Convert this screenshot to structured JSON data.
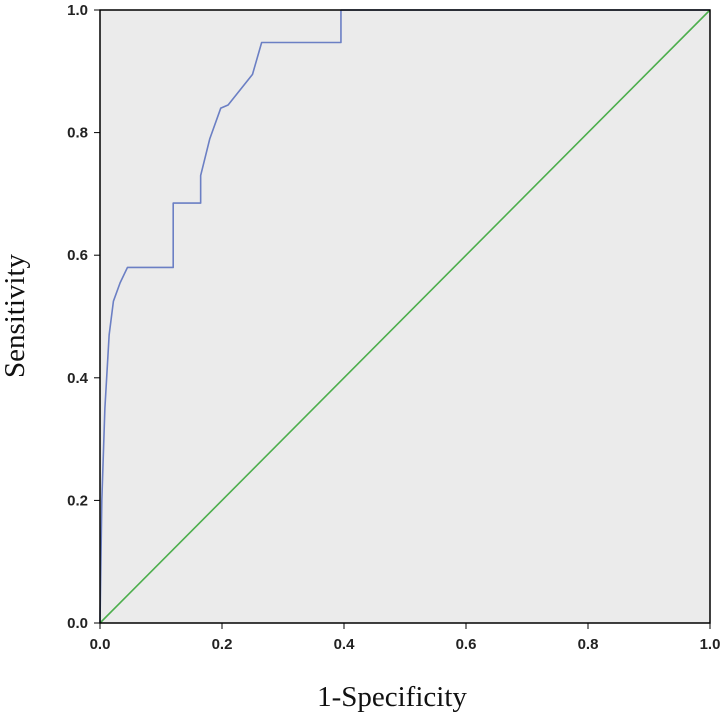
{
  "chart_data": {
    "type": "line",
    "title": "",
    "xlabel": "1-Specificity",
    "ylabel": "Sensitivity",
    "xlim": [
      0,
      1
    ],
    "ylim": [
      0,
      1
    ],
    "x_ticks": [
      "0.0",
      "0.2",
      "0.4",
      "0.6",
      "0.8",
      "1.0"
    ],
    "y_ticks": [
      "0.0",
      "0.2",
      "0.4",
      "0.6",
      "0.8",
      "1.0"
    ],
    "grid": false,
    "series": [
      {
        "color": "#6b7fc4",
        "x": [
          0.0,
          0.003,
          0.008,
          0.015,
          0.022,
          0.033,
          0.045,
          0.12,
          0.12,
          0.165,
          0.165,
          0.18,
          0.198,
          0.21,
          0.25,
          0.265,
          0.395,
          0.395,
          1.0
        ],
        "y": [
          0.0,
          0.2,
          0.35,
          0.47,
          0.525,
          0.555,
          0.58,
          0.58,
          0.685,
          0.685,
          0.73,
          0.79,
          0.84,
          0.845,
          0.895,
          0.947,
          0.947,
          1.0,
          1.0
        ]
      },
      {
        "color": "#4cae4c",
        "x": [
          0.0,
          1.0
        ],
        "y": [
          0.0,
          1.0
        ]
      }
    ],
    "plot_background": "#ebebeb"
  }
}
